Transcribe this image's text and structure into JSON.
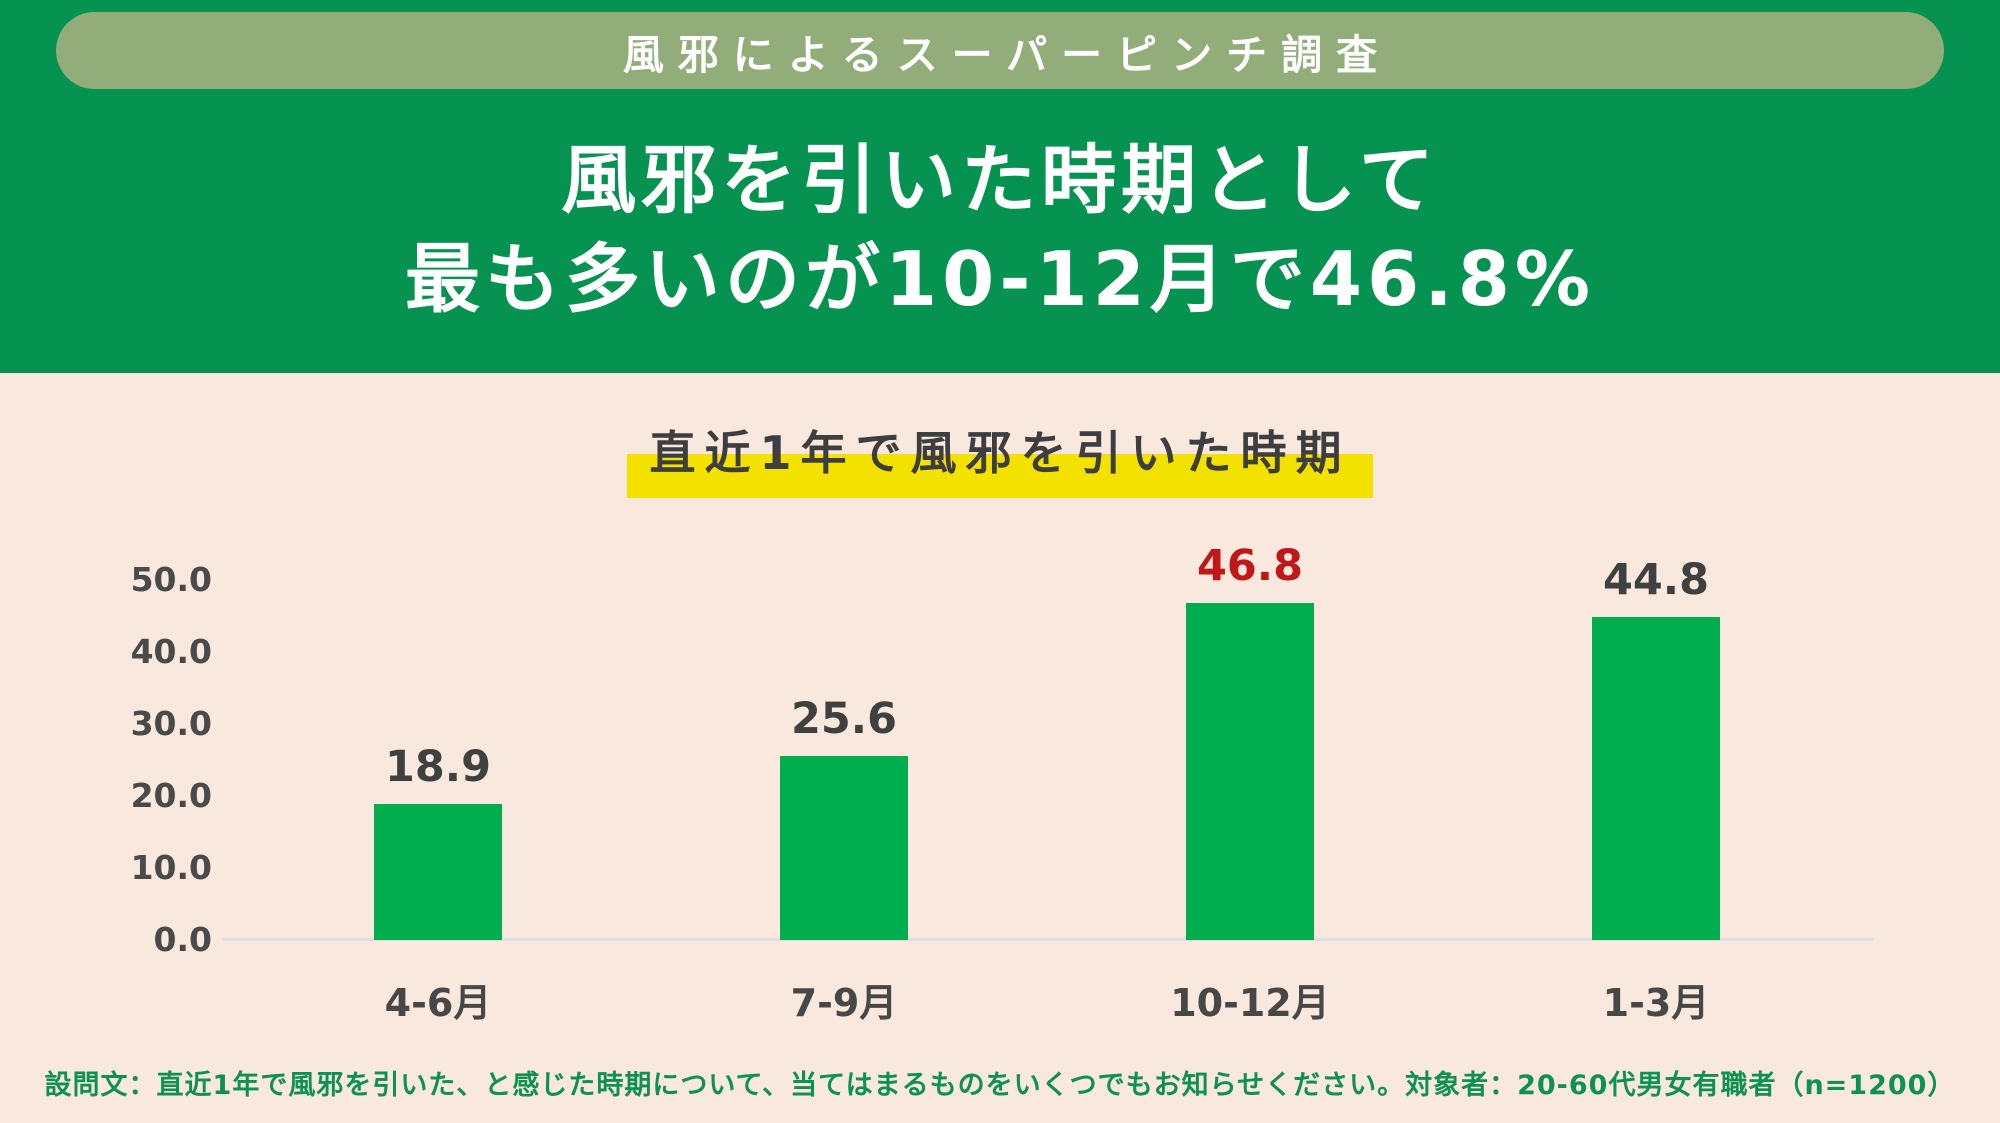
{
  "badge": {
    "label": "風邪によるスーパーピンチ調査"
  },
  "title": {
    "line1": "風邪を引いた時期として",
    "line2": "最も多いのが10-12月で46.8%"
  },
  "chart_data": {
    "type": "bar",
    "title": "直近1年で風邪を引いた時期",
    "categories": [
      "4-6月",
      "7-9月",
      "10-12月",
      "1-3月"
    ],
    "values": [
      18.9,
      25.6,
      46.8,
      44.8
    ],
    "value_labels": [
      "18.9",
      "25.6",
      "46.8",
      "44.8"
    ],
    "highlight_index": 2,
    "y_ticks": [
      "0.0",
      "10.0",
      "20.0",
      "30.0",
      "40.0",
      "50.0"
    ],
    "ylim": [
      0,
      50
    ],
    "xlabel": "",
    "ylabel": "",
    "grid": false,
    "legend": "none"
  },
  "footer": {
    "note": "設問文：直近1年で風邪を引いた、と感じた時期について、当てはまるものをいくつでもお知らせください。対象者：20-60代男女有職者（n=1200）"
  },
  "colors": {
    "header_green": "#069250",
    "badge_green": "#92AD7A",
    "background_cream": "#F9E8DD",
    "bar_green": "#00AD4F",
    "highlight_yellow": "#F3E100",
    "highlight_value_red": "#C01818",
    "value_text": "#3F4040",
    "footer_green": "#0E9251",
    "title_text": "#FFFFFF"
  }
}
